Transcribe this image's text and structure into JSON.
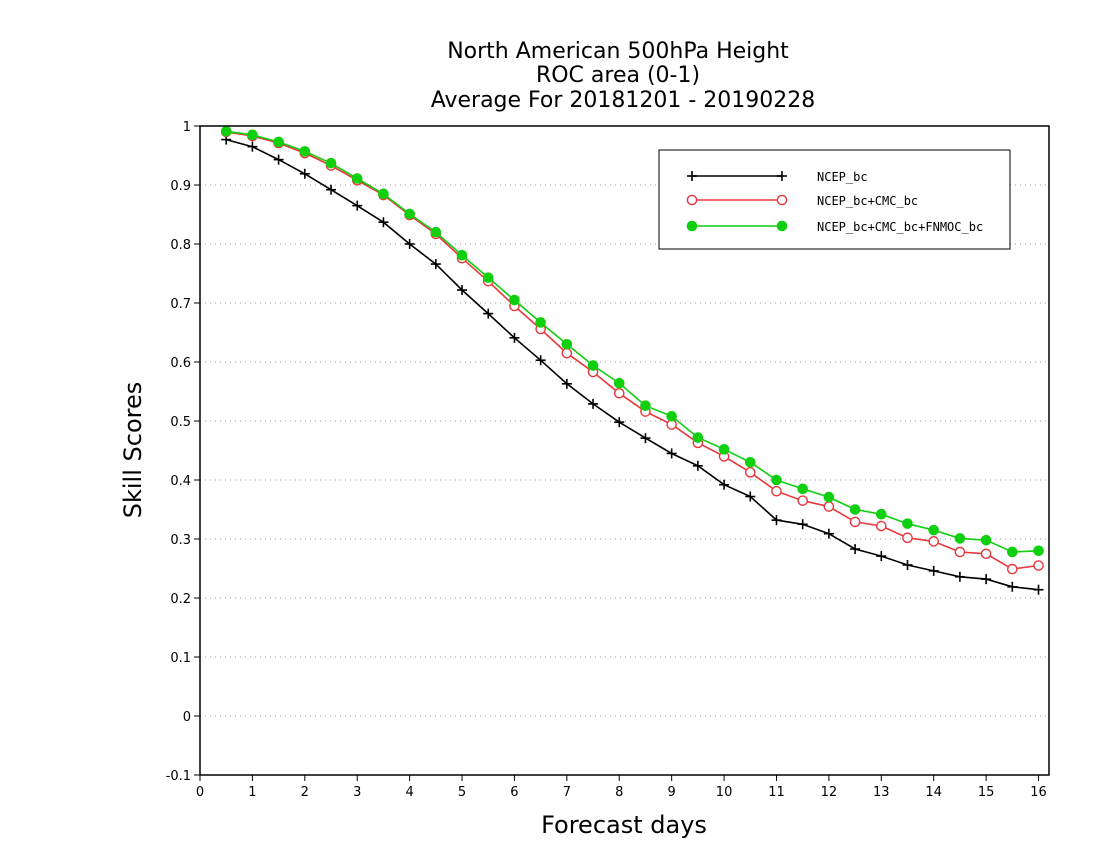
{
  "chart_data": {
    "type": "line",
    "title_lines": [
      "North American 500hPa Height",
      "ROC area (0-1)",
      "Average For 20181201 - 20190228"
    ],
    "xlabel": "Forecast days",
    "ylabel": "Skill Scores",
    "xlim": [
      0,
      16.2
    ],
    "ylim": [
      -0.1,
      1
    ],
    "xticks": [
      "0",
      "1",
      "2",
      "3",
      "4",
      "5",
      "6",
      "7",
      "8",
      "9",
      "10",
      "11",
      "12",
      "13",
      "14",
      "15",
      "16"
    ],
    "yticks": [
      "-0.1",
      "0",
      "0.1",
      "0.2",
      "0.3",
      "0.4",
      "0.5",
      "0.6",
      "0.7",
      "0.8",
      "0.9",
      "1"
    ],
    "grid": "horizontal dotted",
    "legend_position": "top-right",
    "x": [
      0.5,
      1,
      1.5,
      2,
      2.5,
      3,
      3.5,
      4,
      4.5,
      5,
      5.5,
      6,
      6.5,
      7,
      7.5,
      8,
      8.5,
      9,
      9.5,
      10,
      10.5,
      11,
      11.5,
      12,
      12.5,
      13,
      13.5,
      14,
      14.5,
      15,
      15.5,
      16
    ],
    "series": [
      {
        "name": "NCEP_bc",
        "color": "#000000",
        "marker": "plus",
        "values": [
          0.977,
          0.965,
          0.943,
          0.919,
          0.892,
          0.865,
          0.837,
          0.8,
          0.766,
          0.722,
          0.682,
          0.641,
          0.603,
          0.563,
          0.529,
          0.498,
          0.471,
          0.445,
          0.424,
          0.392,
          0.372,
          0.332,
          0.325,
          0.309,
          0.283,
          0.271,
          0.256,
          0.246,
          0.236,
          0.232,
          0.219,
          0.214
        ]
      },
      {
        "name": "NCEP_bc+CMC_bc",
        "color": "#e8383d",
        "marker": "open-circle",
        "values": [
          0.99,
          0.983,
          0.971,
          0.954,
          0.933,
          0.908,
          0.883,
          0.849,
          0.817,
          0.776,
          0.737,
          0.695,
          0.656,
          0.615,
          0.583,
          0.547,
          0.516,
          0.494,
          0.463,
          0.44,
          0.413,
          0.381,
          0.365,
          0.355,
          0.329,
          0.322,
          0.302,
          0.296,
          0.278,
          0.275,
          0.249,
          0.255
        ]
      },
      {
        "name": "NCEP_bc+CMC_bc+FNMOC_bc",
        "color": "#0fcf0f",
        "marker": "filled-circle",
        "values": [
          0.991,
          0.985,
          0.973,
          0.957,
          0.937,
          0.911,
          0.885,
          0.851,
          0.82,
          0.781,
          0.743,
          0.705,
          0.667,
          0.63,
          0.594,
          0.564,
          0.526,
          0.508,
          0.472,
          0.452,
          0.43,
          0.4,
          0.385,
          0.371,
          0.35,
          0.342,
          0.326,
          0.315,
          0.301,
          0.298,
          0.278,
          0.28
        ]
      }
    ]
  }
}
